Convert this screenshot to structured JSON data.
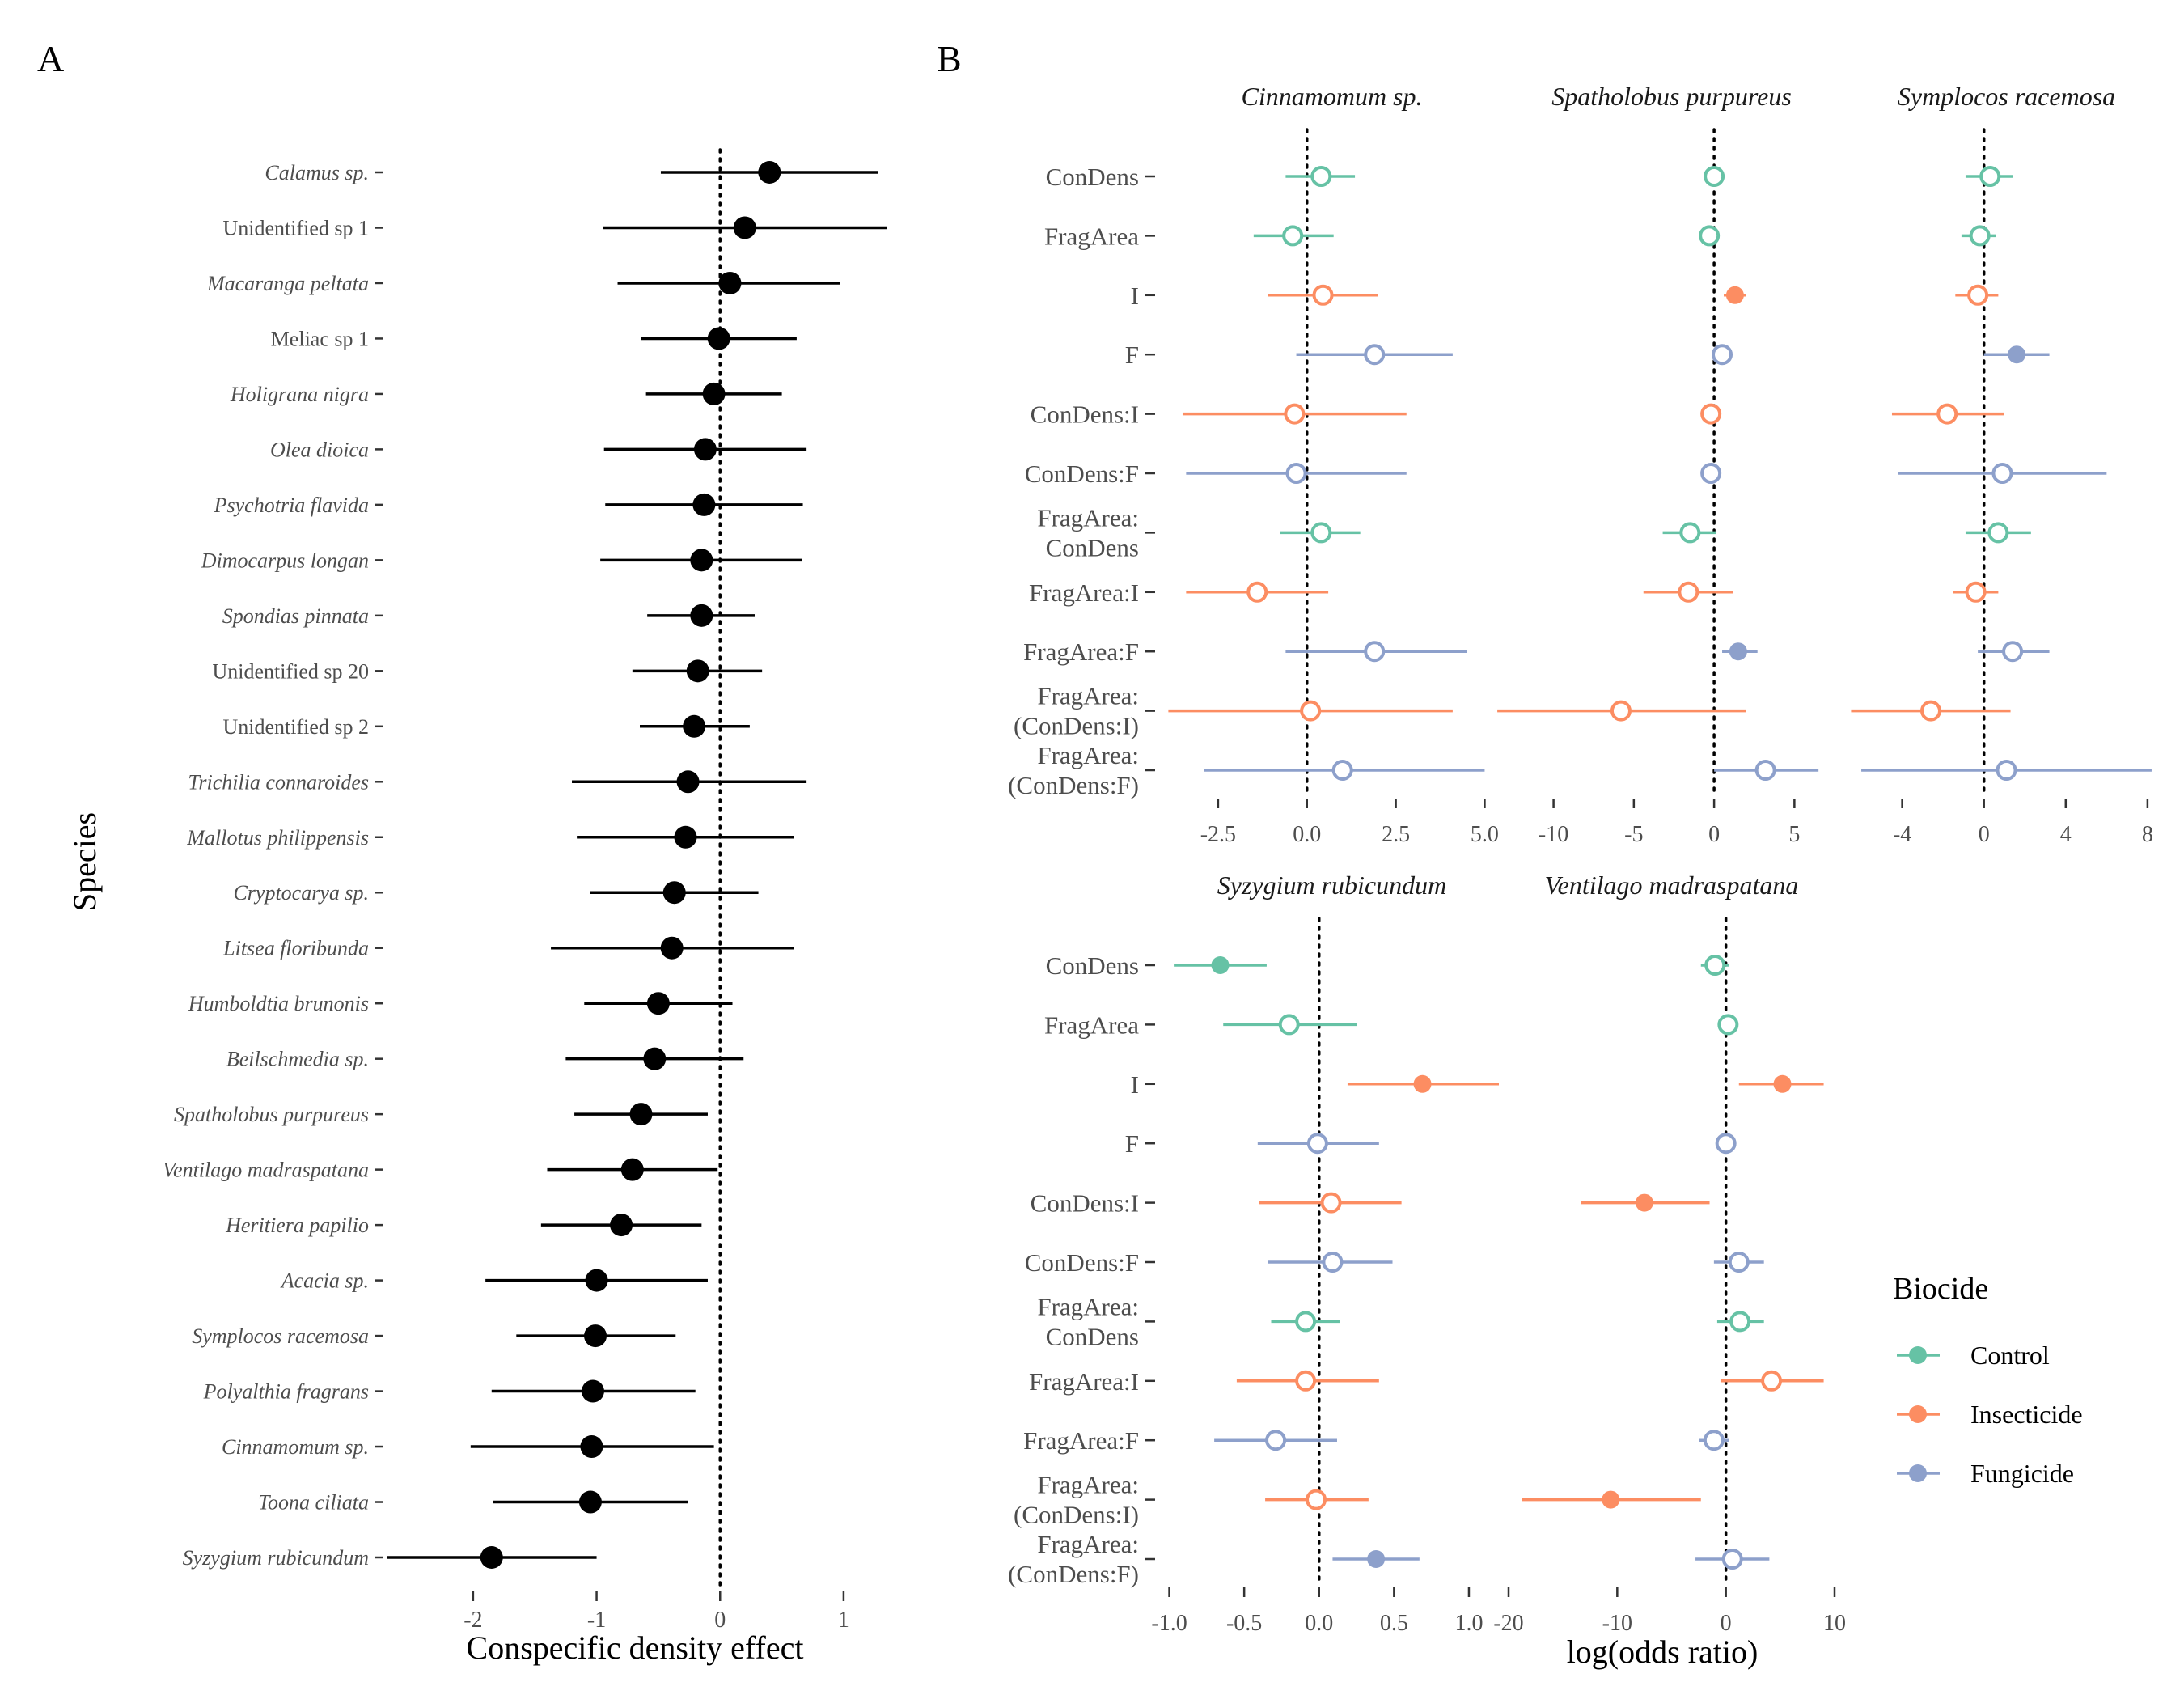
{
  "panel_labels": {
    "a": "A",
    "b": "B"
  },
  "colors": {
    "control": "#66C2A5",
    "insecticide": "#FC8D62",
    "fungicide": "#8DA0CB",
    "black": "#000000"
  },
  "legend": {
    "title": "Biocide",
    "items": [
      {
        "key": "control",
        "label": "Control"
      },
      {
        "key": "insecticide",
        "label": "Insecticide"
      },
      {
        "key": "fungicide",
        "label": "Fungicide"
      }
    ]
  },
  "chart_data": [
    {
      "type": "scatter",
      "id": "A",
      "xlabel": "Conspecific density effect",
      "ylabel": "Species",
      "xlim": [
        -2.7,
        1.4
      ],
      "xticks": [
        -2,
        -1,
        0,
        1
      ],
      "xtick_labels": [
        "-2",
        "-1",
        "0",
        "1"
      ],
      "reference_line": 0,
      "species": [
        {
          "name": "Calamus sp.",
          "italic": true,
          "est": 0.4,
          "lo": -0.48,
          "hi": 1.28
        },
        {
          "name": "Unidentified sp 1",
          "italic": false,
          "est": 0.2,
          "lo": -0.95,
          "hi": 1.35
        },
        {
          "name": "Macaranga peltata",
          "italic": true,
          "est": 0.08,
          "lo": -0.83,
          "hi": 0.97
        },
        {
          "name": "Meliac sp 1",
          "italic": false,
          "est": -0.01,
          "lo": -0.64,
          "hi": 0.62
        },
        {
          "name": "Holigrana nigra",
          "italic": true,
          "est": -0.05,
          "lo": -0.6,
          "hi": 0.5
        },
        {
          "name": "Olea dioica",
          "italic": true,
          "est": -0.12,
          "lo": -0.94,
          "hi": 0.7
        },
        {
          "name": "Psychotria flavida",
          "italic": true,
          "est": -0.13,
          "lo": -0.93,
          "hi": 0.67
        },
        {
          "name": "Dimocarpus longan",
          "italic": true,
          "est": -0.15,
          "lo": -0.97,
          "hi": 0.66
        },
        {
          "name": "Spondias pinnata",
          "italic": true,
          "est": -0.15,
          "lo": -0.59,
          "hi": 0.28
        },
        {
          "name": "Unidentified sp 20",
          "italic": false,
          "est": -0.18,
          "lo": -0.71,
          "hi": 0.34
        },
        {
          "name": "Unidentified sp 2",
          "italic": false,
          "est": -0.21,
          "lo": -0.65,
          "hi": 0.24
        },
        {
          "name": "Trichilia connaroides",
          "italic": true,
          "est": -0.26,
          "lo": -1.2,
          "hi": 0.7
        },
        {
          "name": "Mallotus philippensis",
          "italic": true,
          "est": -0.28,
          "lo": -1.16,
          "hi": 0.6
        },
        {
          "name": "Cryptocarya sp.",
          "italic": true,
          "est": -0.37,
          "lo": -1.05,
          "hi": 0.31
        },
        {
          "name": "Litsea floribunda",
          "italic": true,
          "est": -0.39,
          "lo": -1.37,
          "hi": 0.6
        },
        {
          "name": "Humboldtia brunonis",
          "italic": true,
          "est": -0.5,
          "lo": -1.1,
          "hi": 0.1
        },
        {
          "name": "Beilschmedia sp.",
          "italic": true,
          "est": -0.53,
          "lo": -1.25,
          "hi": 0.19
        },
        {
          "name": "Spatholobus purpureus",
          "italic": true,
          "est": -0.64,
          "lo": -1.18,
          "hi": -0.1
        },
        {
          "name": "Ventilago madraspatana",
          "italic": true,
          "est": -0.71,
          "lo": -1.4,
          "hi": -0.02
        },
        {
          "name": "Heritiera papilio",
          "italic": true,
          "est": -0.8,
          "lo": -1.45,
          "hi": -0.15
        },
        {
          "name": "Acacia sp.",
          "italic": true,
          "est": -1.0,
          "lo": -1.9,
          "hi": -0.1
        },
        {
          "name": "Symplocos racemosa",
          "italic": true,
          "est": -1.01,
          "lo": -1.65,
          "hi": -0.36
        },
        {
          "name": "Polyalthia fragrans",
          "italic": true,
          "est": -1.03,
          "lo": -1.85,
          "hi": -0.2
        },
        {
          "name": "Cinnamomum sp.",
          "italic": true,
          "est": -1.04,
          "lo": -2.02,
          "hi": -0.05
        },
        {
          "name": "Toona ciliata",
          "italic": true,
          "est": -1.05,
          "lo": -1.84,
          "hi": -0.26
        },
        {
          "name": "Syzygium rubicundum",
          "italic": true,
          "est": -1.85,
          "lo": -2.7,
          "hi": -1.0
        }
      ]
    },
    {
      "type": "scatter",
      "id": "B",
      "xlabel": "log(odds ratio)",
      "terms": [
        "ConDens",
        "FragArea",
        "I",
        "F",
        "ConDens:I",
        "ConDens:F",
        "FragArea:\nConDens",
        "FragArea:I",
        "FragArea:F",
        "FragArea:\n(ConDens:I)",
        "FragArea:\n(ConDens:F)"
      ],
      "term_groups": [
        "control",
        "control",
        "insecticide",
        "fungicide",
        "insecticide",
        "fungicide",
        "control",
        "insecticide",
        "fungicide",
        "insecticide",
        "fungicide"
      ],
      "facets": [
        {
          "title": "Cinnamomum sp.",
          "xlim": [
            -4.0,
            5.4
          ],
          "xticks": [
            -2.5,
            0.0,
            2.5,
            5.0
          ],
          "xtick_labels": [
            "-2.5",
            "0.0",
            "2.5",
            "5.0"
          ],
          "points": [
            {
              "est": 0.4,
              "lo": -0.6,
              "hi": 1.35,
              "filled": false
            },
            {
              "est": -0.4,
              "lo": -1.5,
              "hi": 0.75,
              "filled": false
            },
            {
              "est": 0.45,
              "lo": -1.1,
              "hi": 2.0,
              "filled": false
            },
            {
              "est": 1.9,
              "lo": -0.3,
              "hi": 4.1,
              "filled": false
            },
            {
              "est": -0.35,
              "lo": -3.5,
              "hi": 2.8,
              "filled": false
            },
            {
              "est": -0.3,
              "lo": -3.4,
              "hi": 2.8,
              "filled": false
            },
            {
              "est": 0.4,
              "lo": -0.75,
              "hi": 1.5,
              "filled": false
            },
            {
              "est": -1.4,
              "lo": -3.4,
              "hi": 0.6,
              "filled": false
            },
            {
              "est": 1.9,
              "lo": -0.6,
              "hi": 4.5,
              "filled": false
            },
            {
              "est": 0.1,
              "lo": -3.9,
              "hi": 4.1,
              "filled": false
            },
            {
              "est": 1.0,
              "lo": -2.9,
              "hi": 5.0,
              "filled": false
            }
          ]
        },
        {
          "title": "Spatholobus purpureus",
          "xlim": [
            -12.8,
            7.5
          ],
          "xticks": [
            -10,
            -5,
            0,
            5
          ],
          "xtick_labels": [
            "-10",
            "-5",
            "0",
            "5"
          ],
          "points": [
            {
              "est": 0.0,
              "lo": -0.4,
              "hi": 0.4,
              "filled": false
            },
            {
              "est": -0.3,
              "lo": -0.7,
              "hi": 0.2,
              "filled": false
            },
            {
              "est": 1.3,
              "lo": 0.6,
              "hi": 2.0,
              "filled": true
            },
            {
              "est": 0.5,
              "lo": -0.1,
              "hi": 1.1,
              "filled": false
            },
            {
              "est": -0.2,
              "lo": -0.6,
              "hi": 0.3,
              "filled": false
            },
            {
              "est": -0.2,
              "lo": -0.5,
              "hi": 0.1,
              "filled": false
            },
            {
              "est": -1.5,
              "lo": -3.2,
              "hi": 0.1,
              "filled": false
            },
            {
              "est": -1.6,
              "lo": -4.4,
              "hi": 1.2,
              "filled": false
            },
            {
              "est": 1.5,
              "lo": 0.5,
              "hi": 2.7,
              "filled": true
            },
            {
              "est": -5.8,
              "lo": -13.5,
              "hi": 2.0,
              "filled": false
            },
            {
              "est": 3.2,
              "lo": 0.0,
              "hi": 6.5,
              "filled": false
            }
          ]
        },
        {
          "title": "Symplocos racemosa",
          "xlim": [
            -6.2,
            8.4
          ],
          "xticks": [
            -4,
            0,
            4,
            8
          ],
          "xtick_labels": [
            "-4",
            "0",
            "4",
            "8"
          ],
          "points": [
            {
              "est": 0.3,
              "lo": -0.9,
              "hi": 1.4,
              "filled": false
            },
            {
              "est": -0.2,
              "lo": -1.1,
              "hi": 0.6,
              "filled": false
            },
            {
              "est": -0.3,
              "lo": -1.4,
              "hi": 0.7,
              "filled": false
            },
            {
              "est": 1.6,
              "lo": 0.0,
              "hi": 3.2,
              "filled": true
            },
            {
              "est": -1.8,
              "lo": -4.5,
              "hi": 1.0,
              "filled": false
            },
            {
              "est": 0.9,
              "lo": -4.2,
              "hi": 6.0,
              "filled": false
            },
            {
              "est": 0.7,
              "lo": -0.9,
              "hi": 2.3,
              "filled": false
            },
            {
              "est": -0.4,
              "lo": -1.5,
              "hi": 0.7,
              "filled": false
            },
            {
              "est": 1.4,
              "lo": -0.3,
              "hi": 3.2,
              "filled": false
            },
            {
              "est": -2.6,
              "lo": -6.5,
              "hi": 1.3,
              "filled": false
            },
            {
              "est": 1.1,
              "lo": -6.0,
              "hi": 8.2,
              "filled": false
            }
          ]
        },
        {
          "title": "Syzygium rubicundum",
          "xlim": [
            -1.03,
            1.2
          ],
          "xticks": [
            -1.0,
            -0.5,
            0.0,
            0.5,
            1.0
          ],
          "xtick_labels": [
            "-1.0",
            "-0.5",
            "0.0",
            "0.5",
            "1.0"
          ],
          "points": [
            {
              "est": -0.66,
              "lo": -0.97,
              "hi": -0.35,
              "filled": true
            },
            {
              "est": -0.2,
              "lo": -0.64,
              "hi": 0.25,
              "filled": false
            },
            {
              "est": 0.69,
              "lo": 0.19,
              "hi": 1.2,
              "filled": true
            },
            {
              "est": -0.01,
              "lo": -0.41,
              "hi": 0.4,
              "filled": false
            },
            {
              "est": 0.08,
              "lo": -0.4,
              "hi": 0.55,
              "filled": false
            },
            {
              "est": 0.09,
              "lo": -0.34,
              "hi": 0.49,
              "filled": false
            },
            {
              "est": -0.09,
              "lo": -0.32,
              "hi": 0.14,
              "filled": false
            },
            {
              "est": -0.09,
              "lo": -0.55,
              "hi": 0.4,
              "filled": false
            },
            {
              "est": -0.29,
              "lo": -0.7,
              "hi": 0.12,
              "filled": false
            },
            {
              "est": -0.02,
              "lo": -0.36,
              "hi": 0.33,
              "filled": false
            },
            {
              "est": 0.38,
              "lo": 0.09,
              "hi": 0.67,
              "filled": true
            }
          ]
        },
        {
          "title": "Ventilago madraspatana",
          "xlim": [
            -20.0,
            10.0
          ],
          "xticks": [
            -20,
            -10,
            0,
            10
          ],
          "xtick_labels": [
            "-20",
            "-10",
            "0",
            "10"
          ],
          "points": [
            {
              "est": -1.0,
              "lo": -2.3,
              "hi": 0.3,
              "filled": false
            },
            {
              "est": 0.2,
              "lo": -0.6,
              "hi": 1.0,
              "filled": false
            },
            {
              "est": 5.2,
              "lo": 1.2,
              "hi": 9.0,
              "filled": true
            },
            {
              "est": 0.0,
              "lo": -0.6,
              "hi": 0.6,
              "filled": false
            },
            {
              "est": -7.5,
              "lo": -13.3,
              "hi": -1.5,
              "filled": true
            },
            {
              "est": 1.2,
              "lo": -1.1,
              "hi": 3.5,
              "filled": false
            },
            {
              "est": 1.3,
              "lo": -0.8,
              "hi": 3.5,
              "filled": false
            },
            {
              "est": 4.2,
              "lo": -0.5,
              "hi": 9.0,
              "filled": false
            },
            {
              "est": -1.1,
              "lo": -2.5,
              "hi": 0.3,
              "filled": false
            },
            {
              "est": -10.6,
              "lo": -18.8,
              "hi": -2.3,
              "filled": true
            },
            {
              "est": 0.6,
              "lo": -2.8,
              "hi": 4.0,
              "filled": false
            }
          ]
        }
      ]
    }
  ]
}
